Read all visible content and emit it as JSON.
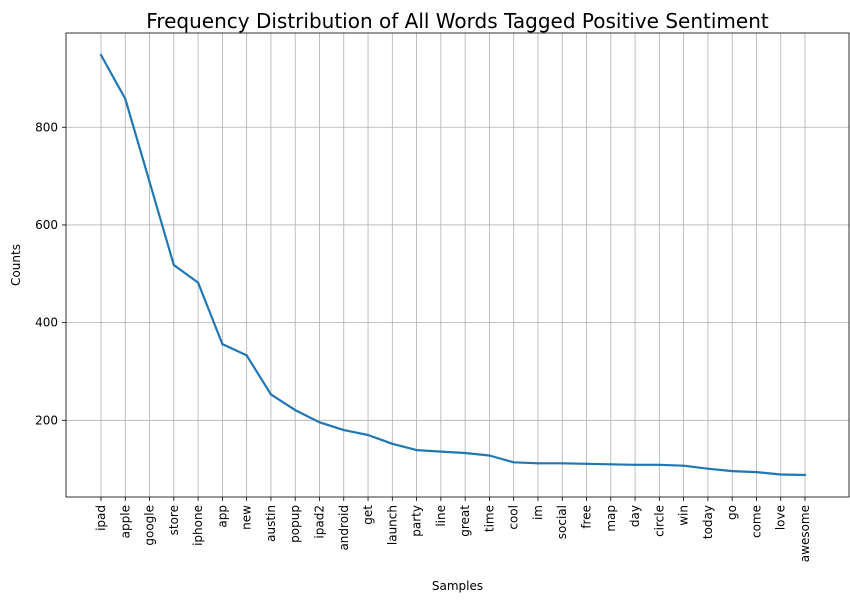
{
  "chart_data": {
    "type": "line",
    "title": "Frequency Distribution of All Words Tagged Positive Sentiment",
    "xlabel": "Samples",
    "ylabel": "Counts",
    "categories": [
      "ipad",
      "apple",
      "google",
      "store",
      "iphone",
      "app",
      "new",
      "austin",
      "popup",
      "ipad2",
      "android",
      "get",
      "launch",
      "party",
      "line",
      "great",
      "time",
      "cool",
      "im",
      "social",
      "free",
      "map",
      "day",
      "circle",
      "win",
      "today",
      "go",
      "come",
      "love",
      "awesome"
    ],
    "series": [
      {
        "color": "#1f77b4",
        "values": [
          948,
          858,
          688,
          518,
          482,
          356,
          333,
          253,
          221,
          196,
          180,
          170,
          152,
          139,
          136,
          133,
          128,
          114,
          112,
          112,
          111,
          110,
          109,
          109,
          107,
          101,
          96,
          94,
          89,
          88
        ]
      }
    ],
    "ylim": [
      43,
      993
    ],
    "yticks": [
      200,
      400,
      600,
      800
    ],
    "grid": true,
    "legend": "none"
  }
}
